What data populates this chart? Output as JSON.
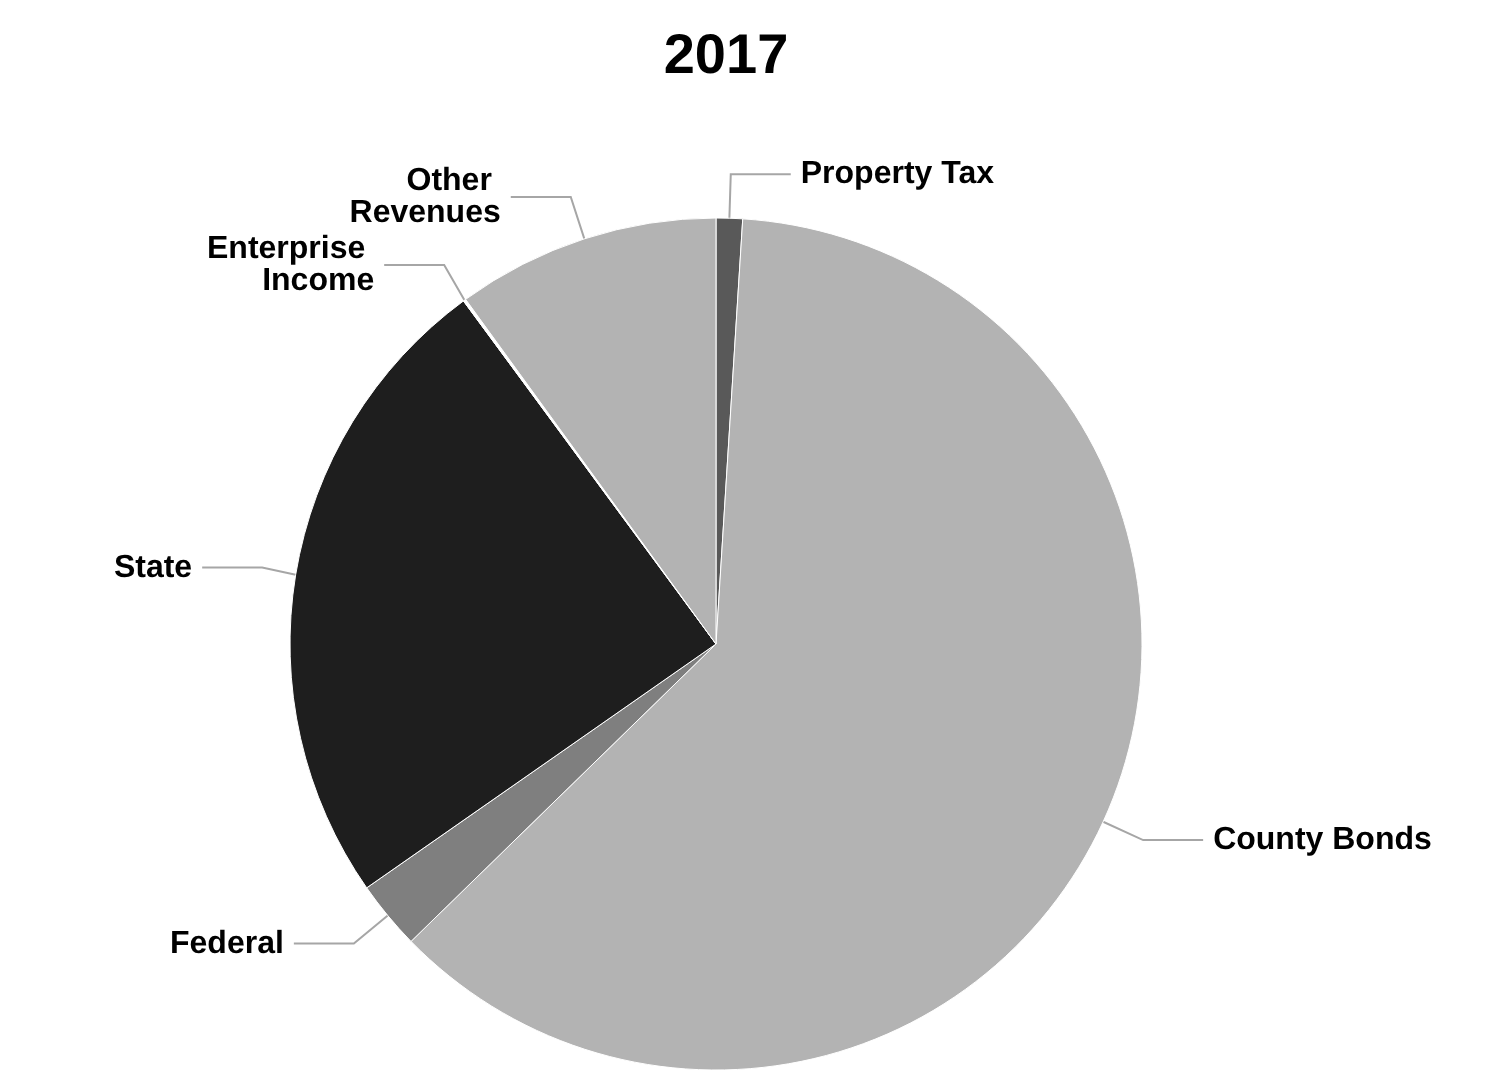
{
  "chart_data": {
    "type": "pie",
    "title": "2017",
    "categories": [
      "Property Tax",
      "County Bonds",
      "Federal",
      "State",
      "Enterprise Income",
      "Other Revenues"
    ],
    "values": [
      1.0,
      61.7,
      2.6,
      24.6,
      0.1,
      10.0
    ],
    "colors": [
      "#595959",
      "#b3b3b3",
      "#7f7f7f",
      "#1e1e1e",
      "#ffffff",
      "#b3b3b3"
    ],
    "legend": false
  }
}
